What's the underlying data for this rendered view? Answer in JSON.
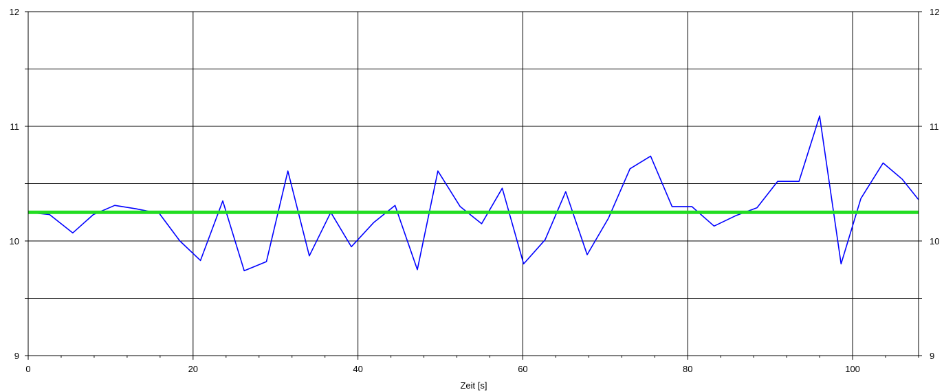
{
  "chart_data": {
    "type": "line",
    "title": "",
    "xlabel": "Zeit [s]",
    "ylabel": "",
    "xlim": [
      0,
      108
    ],
    "ylim": [
      9,
      12
    ],
    "x_ticks": [
      0,
      20,
      40,
      60,
      80,
      100
    ],
    "x_tick_labels": [
      "0",
      "20",
      "40",
      "60",
      "80",
      "100"
    ],
    "y_ticks": [
      9,
      10,
      11,
      12
    ],
    "y_tick_labels": [
      "9",
      "10",
      "11",
      "12"
    ],
    "y_minor_gridlines": [
      9.5,
      10.5,
      11.5
    ],
    "grid": true,
    "legend": "none",
    "series": [
      {
        "color": "#0000ff",
        "style": "thin line",
        "x": [
          0,
          2.6,
          5.4,
          7.9,
          10.5,
          13.1,
          15.9,
          18.4,
          20.9,
          23.6,
          26.2,
          28.9,
          31.5,
          34.1,
          36.7,
          39.2,
          41.9,
          44.5,
          47.2,
          49.7,
          52.4,
          55.0,
          57.5,
          60.1,
          62.7,
          65.2,
          67.8,
          70.4,
          73.0,
          75.5,
          78.1,
          80.5,
          83.2,
          85.8,
          88.4,
          90.9,
          93.5,
          96.0,
          98.6,
          101.0,
          103.7,
          106.0,
          108.0
        ],
        "y": [
          10.25,
          10.23,
          10.07,
          10.23,
          10.31,
          10.28,
          10.24,
          10.0,
          9.83,
          10.35,
          9.74,
          9.82,
          10.61,
          9.87,
          10.25,
          9.95,
          10.16,
          10.31,
          9.75,
          10.61,
          10.3,
          10.15,
          10.46,
          9.8,
          10.01,
          10.43,
          9.88,
          10.2,
          10.63,
          10.74,
          10.3,
          10.3,
          10.13,
          10.22,
          10.29,
          10.52,
          10.52,
          11.09,
          9.8,
          10.37,
          10.68,
          10.54,
          10.36
        ]
      },
      {
        "color": "#22dd22",
        "style": "thick line",
        "x": [
          0,
          108
        ],
        "y": [
          10.25,
          10.25
        ]
      }
    ]
  }
}
